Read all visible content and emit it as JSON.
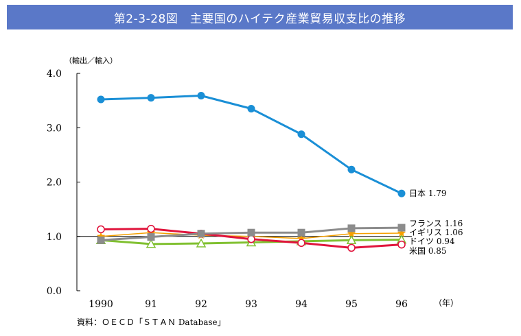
{
  "title": "第2-3-28図　主要国のハイテク産業貿易収支比の推移",
  "source": "資料：ＯＥＣＤ「ＳＴＡＮ Database」",
  "colors": {
    "title_bg": "#5a78c8",
    "japan": "#1a8fd6",
    "france": "#8c8c8c",
    "uk": "#f5a000",
    "germany": "#80c030",
    "us": "#e0143c"
  },
  "chart_data": {
    "type": "line",
    "ylabel": "（輸出／輸入）",
    "xlabel": "（年）",
    "categories": [
      "1990",
      "91",
      "92",
      "93",
      "94",
      "95",
      "96"
    ],
    "ylim": [
      0,
      4
    ],
    "yticks": [
      "0.0",
      "1.0",
      "2.0",
      "3.0",
      "4.0"
    ],
    "reference_line": 1.0,
    "grid": false,
    "series": [
      {
        "key": "japan",
        "label": "日本 1.79",
        "marker": "circle-filled",
        "values": [
          3.52,
          3.55,
          3.59,
          3.35,
          2.88,
          2.23,
          1.79
        ]
      },
      {
        "key": "france",
        "label": "フランス 1.16",
        "marker": "square",
        "values": [
          0.93,
          0.99,
          1.05,
          1.07,
          1.07,
          1.15,
          1.16
        ]
      },
      {
        "key": "uk",
        "label": "イギリス 1.06",
        "marker": "star",
        "values": [
          1.0,
          1.07,
          1.02,
          1.0,
          0.96,
          1.05,
          1.06
        ]
      },
      {
        "key": "germany",
        "label": "ドイツ 0.94",
        "marker": "triangle-open",
        "values": [
          0.93,
          0.86,
          0.87,
          0.89,
          0.91,
          0.93,
          0.94
        ]
      },
      {
        "key": "us",
        "label": "米国 0.85",
        "marker": "circle-open",
        "values": [
          1.13,
          1.14,
          1.05,
          0.95,
          0.88,
          0.79,
          0.85
        ]
      }
    ]
  }
}
